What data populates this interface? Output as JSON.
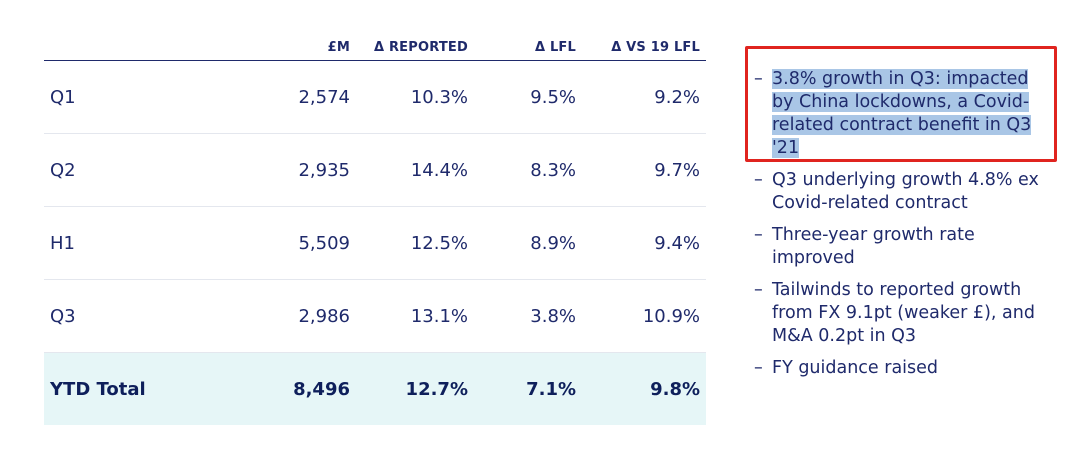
{
  "table": {
    "headers": [
      "£M",
      "Δ REPORTED",
      "Δ LFL",
      "Δ VS 19 LFL"
    ],
    "rows": [
      {
        "label": "Q1",
        "values": [
          "2,574",
          "10.3%",
          "9.5%",
          "9.2%"
        ]
      },
      {
        "label": "Q2",
        "values": [
          "2,935",
          "14.4%",
          "8.3%",
          "9.7%"
        ]
      },
      {
        "label": "H1",
        "values": [
          "5,509",
          "12.5%",
          "8.9%",
          "9.4%"
        ]
      },
      {
        "label": "Q3",
        "values": [
          "2,986",
          "13.1%",
          "3.8%",
          "10.9%"
        ]
      }
    ],
    "total": {
      "label": "YTD Total",
      "values": [
        "8,496",
        "12.7%",
        "7.1%",
        "9.8%"
      ]
    }
  },
  "bullets": [
    {
      "dash": "–",
      "text": "3.8% growth in Q3: impacted by China lockdowns, a Covid-related contract benefit in Q3 '21",
      "highlighted": true
    },
    {
      "dash": "–",
      "text": "Q3 underlying growth 4.8% ex Covid-related contract",
      "highlighted": false
    },
    {
      "dash": "–",
      "text": "Three-year growth rate improved",
      "highlighted": false
    },
    {
      "dash": "–",
      "text": "Tailwinds to reported growth from FX 9.1pt (weaker £), and M&A 0.2pt in Q3",
      "highlighted": false
    },
    {
      "dash": "–",
      "text": "FY guidance raised",
      "highlighted": false
    }
  ],
  "colors": {
    "text": "#1f2a6b",
    "total_bg": "#e6f6f7",
    "highlight": "#a9c6e6",
    "annotation_box": "#e0241f"
  }
}
